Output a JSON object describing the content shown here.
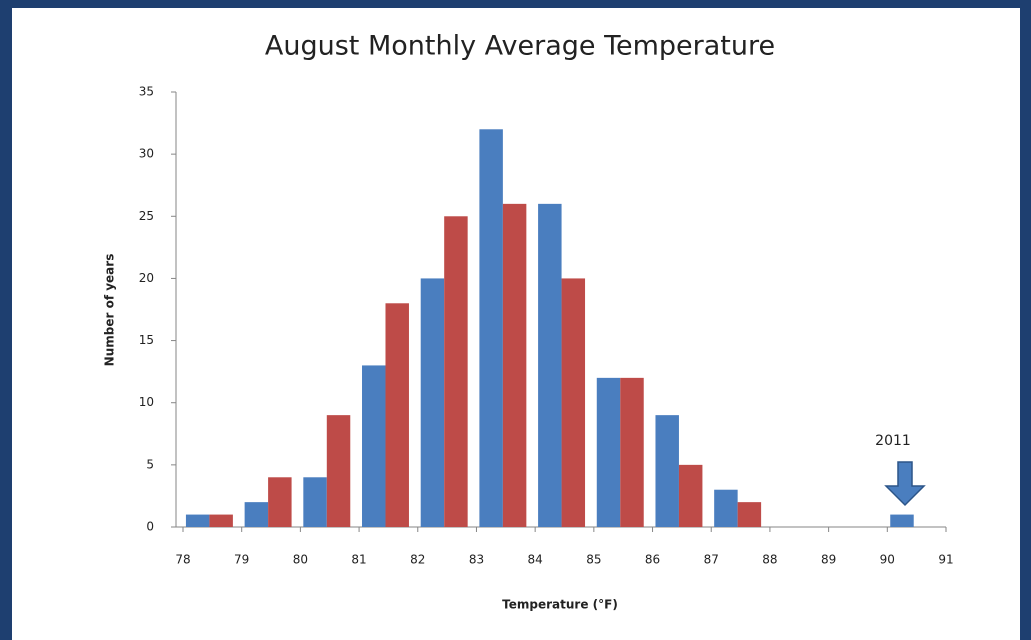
{
  "chart_data": {
    "type": "bar",
    "title": "August Monthly Average Temperature",
    "xlabel": "Temperature (°F)",
    "ylabel": "Number of years",
    "x": [
      78,
      79,
      80,
      81,
      82,
      83,
      84,
      85,
      86,
      87,
      88,
      89,
      90
    ],
    "series": [
      {
        "color": "#4a7ebf",
        "values": [
          1,
          2,
          4,
          13,
          20,
          32,
          26,
          12,
          9,
          3,
          null,
          null,
          1
        ]
      },
      {
        "color": "#be4b48",
        "values": [
          1,
          4,
          9,
          18,
          25,
          26,
          20,
          12,
          5,
          2,
          null,
          null,
          null
        ]
      }
    ],
    "xlim": [
      78,
      91
    ],
    "xticks": [
      78,
      79,
      80,
      81,
      82,
      83,
      84,
      85,
      86,
      87,
      88,
      89,
      90,
      91
    ],
    "ylim": [
      0,
      35
    ],
    "yticks": [
      0,
      5,
      10,
      15,
      20,
      25,
      30,
      35
    ],
    "grid": false,
    "annotation": "2011"
  }
}
